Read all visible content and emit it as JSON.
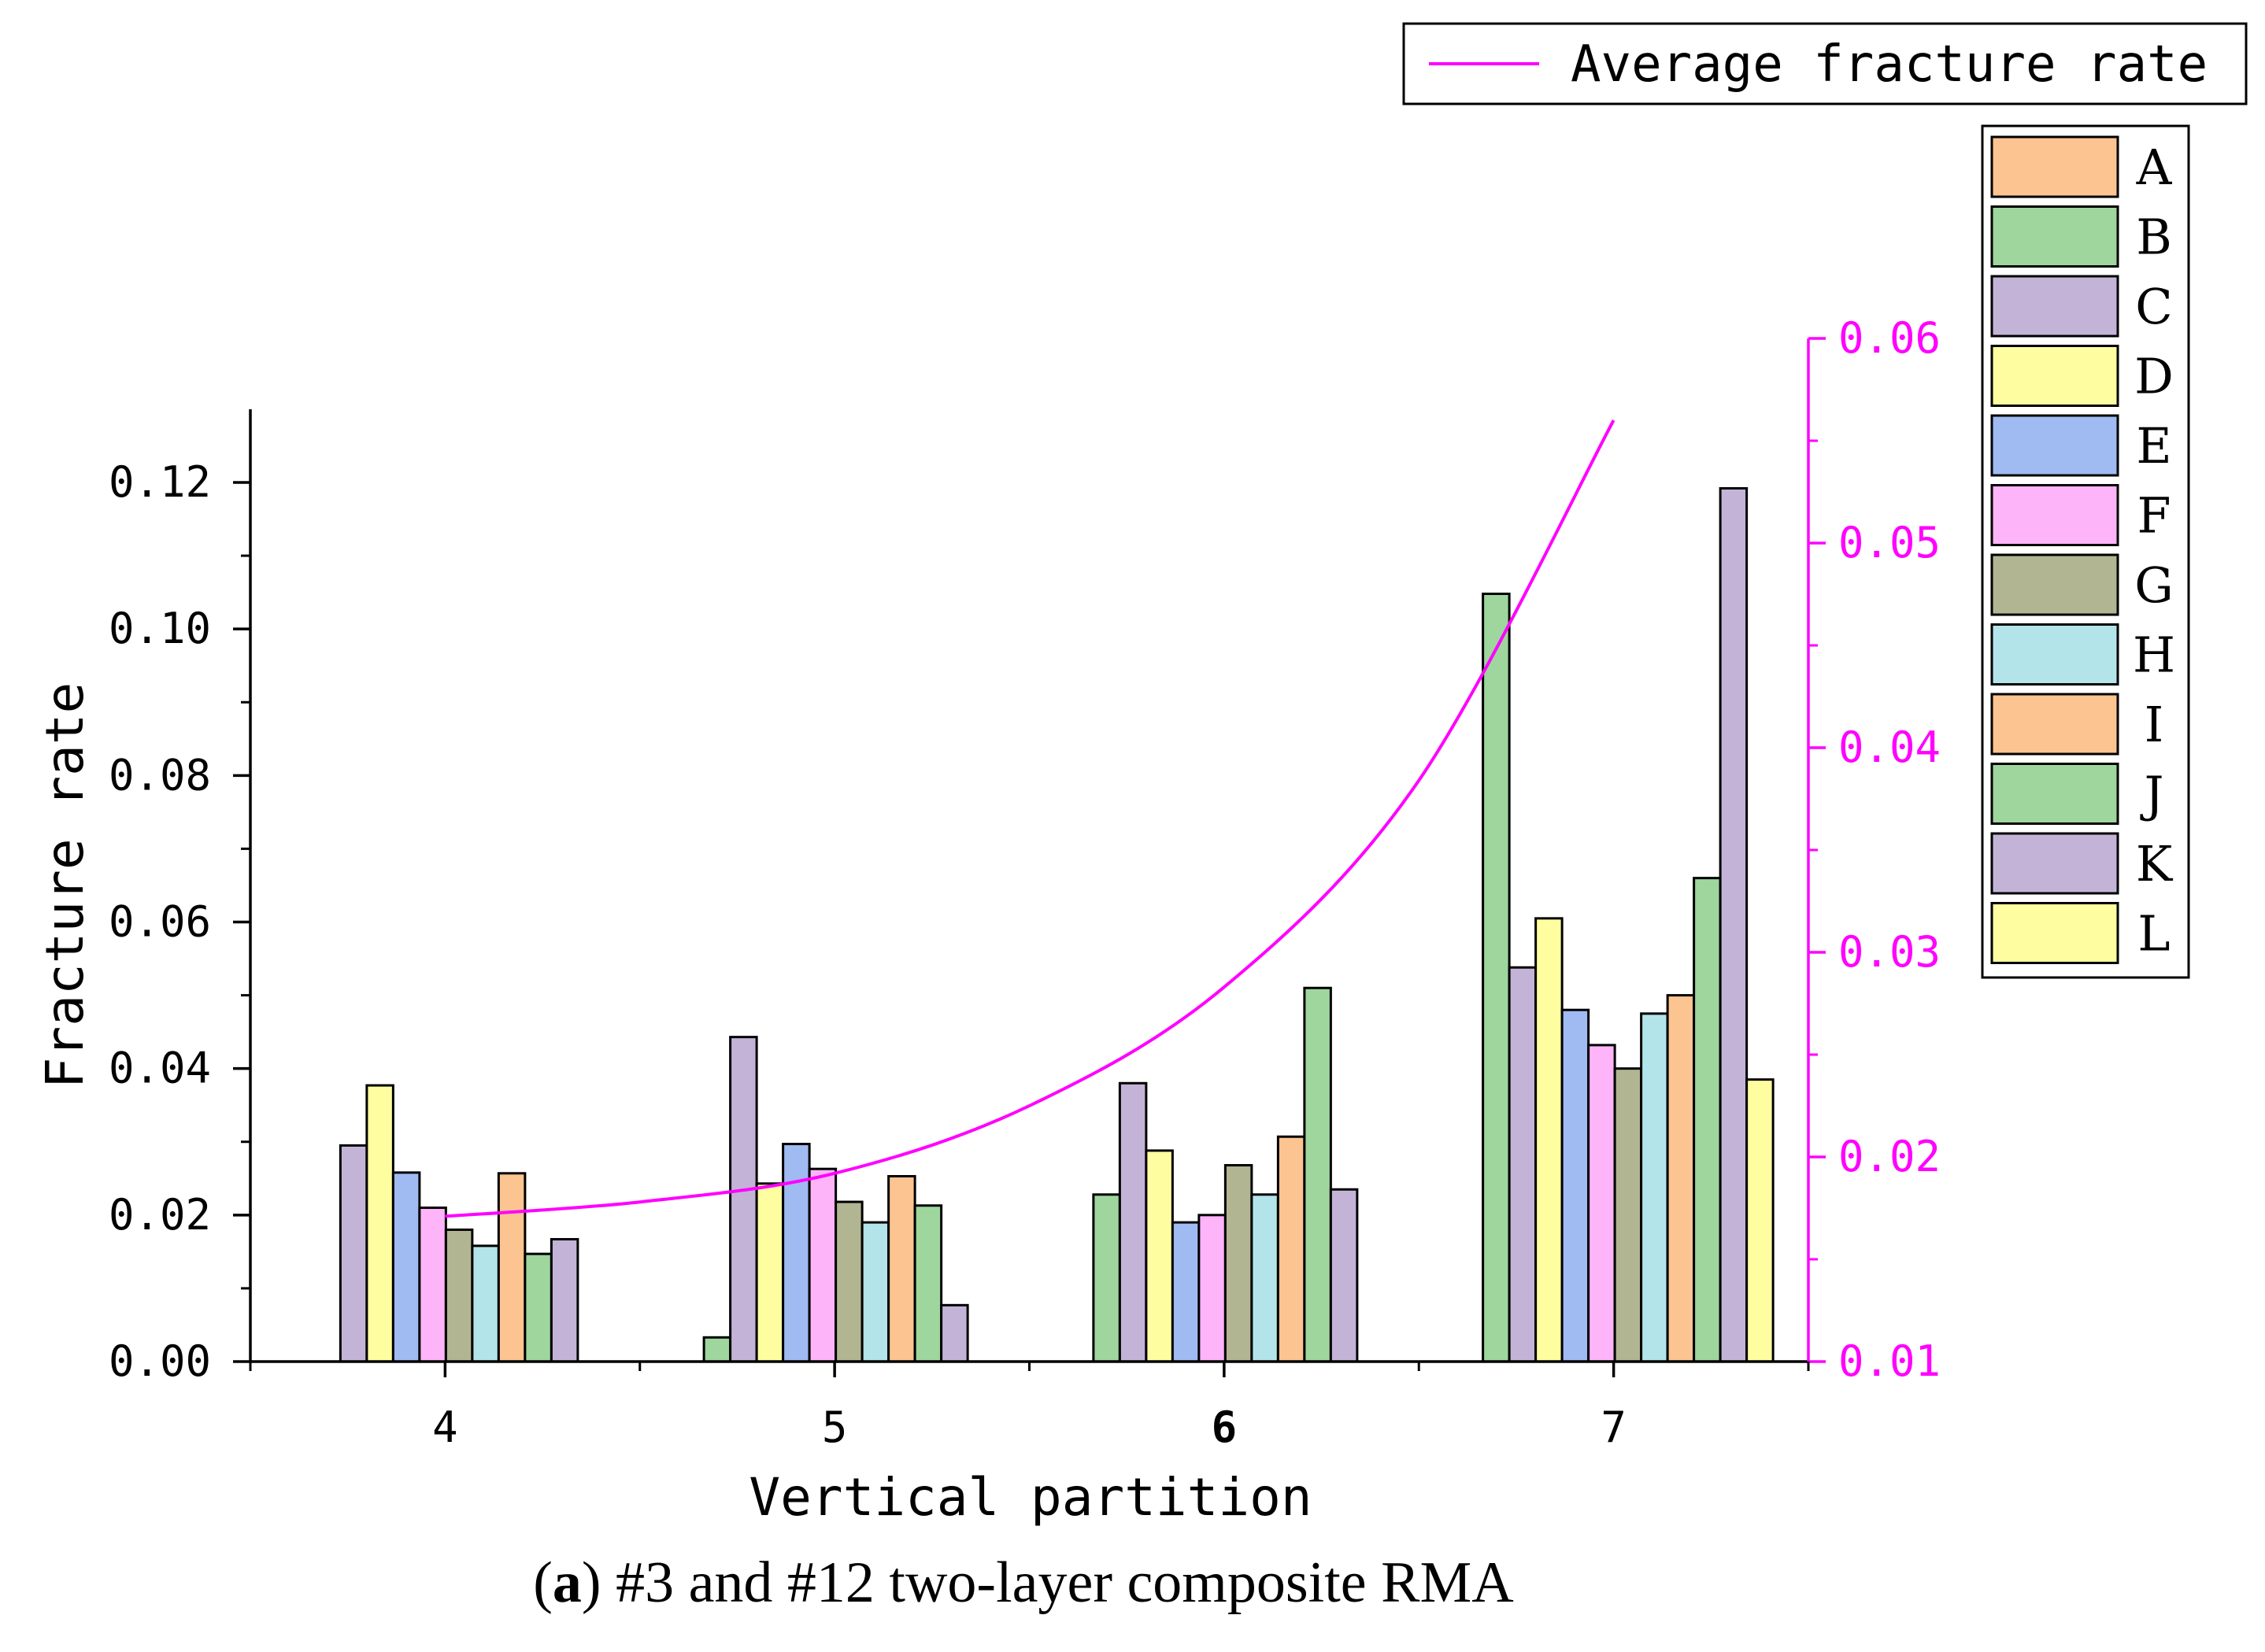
{
  "chart_data": {
    "type": "bar",
    "title": "",
    "caption": {
      "label": "a",
      "text": "#3 and #12 two-layer composite RMA"
    },
    "xlabel": "Vertical partition",
    "ylabel": "Fracture rate",
    "categories": [
      "4",
      "5",
      "6",
      "7"
    ],
    "ylim": [
      0,
      0.13
    ],
    "yticks": [
      "0.00",
      "0.02",
      "0.04",
      "0.06",
      "0.08",
      "0.10",
      "0.12"
    ],
    "ytick_values": [
      0,
      0.02,
      0.04,
      0.06,
      0.08,
      0.1,
      0.12
    ],
    "y2lim": [
      0.01,
      0.06
    ],
    "y2ticks": [
      "0.01",
      "0.02",
      "0.03",
      "0.04",
      "0.05",
      "0.06"
    ],
    "y2tick_values": [
      0.01,
      0.02,
      0.03,
      0.04,
      0.05,
      0.06
    ],
    "series": [
      {
        "name": "A",
        "color": "#fbc490",
        "values": [
          null,
          null,
          null,
          null
        ]
      },
      {
        "name": "B",
        "color": "#9ed69e",
        "values": [
          null,
          0.0033,
          0.0228,
          0.1048
        ]
      },
      {
        "name": "C",
        "color": "#c3b4d7",
        "values": [
          0.0295,
          0.0443,
          0.038,
          0.0538
        ]
      },
      {
        "name": "D",
        "color": "#fefea0",
        "values": [
          0.0377,
          0.0243,
          0.0288,
          0.0605
        ]
      },
      {
        "name": "E",
        "color": "#a0baf2",
        "values": [
          0.0258,
          0.0297,
          0.019,
          0.048
        ]
      },
      {
        "name": "F",
        "color": "#feb4f8",
        "values": [
          0.021,
          0.0263,
          0.02,
          0.0432
        ]
      },
      {
        "name": "G",
        "color": "#b2b592",
        "values": [
          0.018,
          0.0218,
          0.0268,
          0.04
        ]
      },
      {
        "name": "H",
        "color": "#b3e4ea",
        "values": [
          0.0158,
          0.019,
          0.0228,
          0.0475
        ]
      },
      {
        "name": "I",
        "color": "#fbc490",
        "values": [
          0.0257,
          0.0253,
          0.0307,
          0.05
        ]
      },
      {
        "name": "J",
        "color": "#9ed69e",
        "values": [
          0.0147,
          0.0213,
          0.051,
          0.066
        ]
      },
      {
        "name": "K",
        "color": "#c3b4d7",
        "values": [
          0.0167,
          0.0077,
          0.0235,
          0.1192
        ]
      },
      {
        "name": "L",
        "color": "#fefea0",
        "values": [
          null,
          null,
          null,
          0.0385
        ]
      }
    ],
    "line_series": {
      "name": "Average fracture rate",
      "color": "#ff00ff",
      "axis": "right",
      "x": [
        4,
        4.5,
        5,
        5.5,
        6,
        6.5,
        7
      ],
      "values": [
        0.0171,
        0.0178,
        0.0192,
        0.0225,
        0.0283,
        0.0384,
        0.056
      ]
    }
  }
}
